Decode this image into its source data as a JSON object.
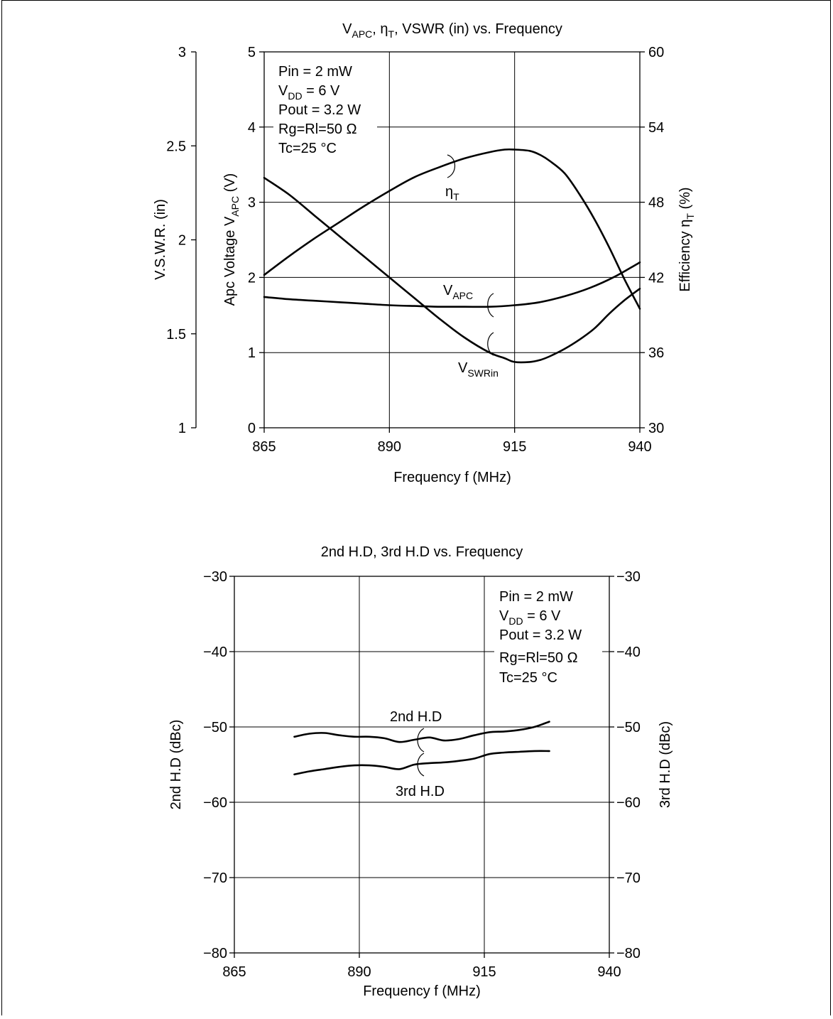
{
  "chart_data": [
    {
      "type": "line",
      "title": "V_APC, η_T, VSWR (in) vs. Frequency",
      "title_parts": {
        "v": "V",
        "v_sub": "APC",
        "sep1": ", ",
        "eta": "η",
        "eta_sub": "T",
        "rest": ", VSWR (in) vs. Frequency"
      },
      "xlabel": "Frequency  f  (MHz)",
      "xlim": [
        865,
        940
      ],
      "x_ticks": [
        "865",
        "890",
        "915",
        "940"
      ],
      "y_axes": {
        "vswr": {
          "label": "V.S.W.R. (in)",
          "lim": [
            1,
            3
          ],
          "ticks": [
            "1",
            "1.5",
            "2",
            "2.5",
            "3"
          ]
        },
        "apc": {
          "label_main": "Apc Voltage  V",
          "label_sub": "APC",
          "label_tail": "  (V)",
          "lim": [
            0,
            5
          ],
          "ticks": [
            "0",
            "1",
            "2",
            "3",
            "4",
            "5"
          ]
        },
        "eff": {
          "label_main": "Efficiency  η",
          "label_sub": "T",
          "label_tail": "  (%)",
          "lim": [
            30,
            60
          ],
          "ticks": [
            "30",
            "36",
            "42",
            "48",
            "54",
            "60"
          ]
        }
      },
      "grid": true,
      "conditions": [
        "Pin = 2 mW",
        "V_DD = 6 V",
        "Pout = 3.2 W",
        "Rg=Rl=50 Ω",
        "Tc=25 °C"
      ],
      "conditions_parts": {
        "vdd_main": "V",
        "vdd_sub": "DD",
        "vdd_tail": " = 6 V"
      },
      "series": [
        {
          "name": "ηT",
          "label_main": "η",
          "label_sub": "T",
          "axis": "eff",
          "x": [
            865,
            870,
            875,
            880,
            885,
            890,
            895,
            900,
            905,
            910,
            913,
            915,
            918,
            920,
            922,
            925,
            928,
            931,
            934,
            937,
            940
          ],
          "y": [
            42.2,
            43.7,
            45.1,
            46.4,
            47.7,
            48.9,
            50.0,
            50.8,
            51.5,
            52.0,
            52.2,
            52.2,
            52.1,
            51.8,
            51.3,
            50.3,
            48.6,
            46.6,
            44.3,
            41.8,
            39.5
          ]
        },
        {
          "name": "VAPC",
          "label_main": "V",
          "label_sub": "APC",
          "axis": "apc",
          "x": [
            865,
            870,
            875,
            880,
            885,
            890,
            895,
            900,
            905,
            910,
            915,
            920,
            925,
            930,
            935,
            940
          ],
          "y": [
            1.74,
            1.71,
            1.69,
            1.67,
            1.65,
            1.63,
            1.62,
            1.61,
            1.61,
            1.61,
            1.63,
            1.67,
            1.75,
            1.86,
            2.01,
            2.2
          ]
        },
        {
          "name": "VSWRin",
          "label_main": "V",
          "label_sub": "SWRin",
          "axis": "vswr",
          "x": [
            865,
            870,
            875,
            880,
            885,
            890,
            895,
            900,
            905,
            910,
            913,
            915,
            918,
            920,
            922,
            925,
            928,
            931,
            934,
            937,
            940
          ],
          "y": [
            2.33,
            2.24,
            2.13,
            2.02,
            1.91,
            1.8,
            1.69,
            1.58,
            1.48,
            1.4,
            1.37,
            1.35,
            1.35,
            1.36,
            1.38,
            1.42,
            1.47,
            1.53,
            1.61,
            1.68,
            1.74
          ]
        }
      ]
    },
    {
      "type": "line",
      "title": "2nd H.D, 3rd H.D vs. Frequency",
      "xlabel": "Frequency f (MHz)",
      "xlim": [
        865,
        940
      ],
      "x_ticks": [
        "865",
        "890",
        "915",
        "940"
      ],
      "ylim": [
        -80,
        -30
      ],
      "ylabel_left": "2nd H.D  (dBc)",
      "ylabel_right": "3rd H.D  (dBc)",
      "y_ticks": [
        "−80",
        "−70",
        "−60",
        "−50",
        "−40",
        "−30"
      ],
      "grid": true,
      "conditions": [
        "Pin = 2 mW",
        "V_DD = 6 V",
        "Pout = 3.2 W",
        "Rg=Rl=50 Ω",
        "Tc=25 °C"
      ],
      "series": [
        {
          "name": "2nd H.D",
          "x": [
            877,
            880,
            883,
            886,
            889,
            892,
            895,
            898,
            901,
            904,
            907,
            910,
            913,
            916,
            919,
            922,
            925,
            928
          ],
          "y": [
            -51.3,
            -50.9,
            -50.8,
            -51.1,
            -51.3,
            -51.3,
            -51.5,
            -52.0,
            -51.7,
            -51.4,
            -51.8,
            -51.6,
            -51.1,
            -50.7,
            -50.6,
            -50.4,
            -50.0,
            -49.3
          ]
        },
        {
          "name": "3rd H.D",
          "x": [
            877,
            880,
            883,
            886,
            889,
            892,
            895,
            898,
            901,
            904,
            907,
            910,
            913,
            916,
            919,
            922,
            925,
            928
          ],
          "y": [
            -56.3,
            -55.9,
            -55.6,
            -55.3,
            -55.1,
            -55.1,
            -55.3,
            -55.6,
            -55.0,
            -54.8,
            -54.7,
            -54.5,
            -54.2,
            -53.6,
            -53.4,
            -53.3,
            -53.2,
            -53.2
          ]
        }
      ]
    }
  ]
}
